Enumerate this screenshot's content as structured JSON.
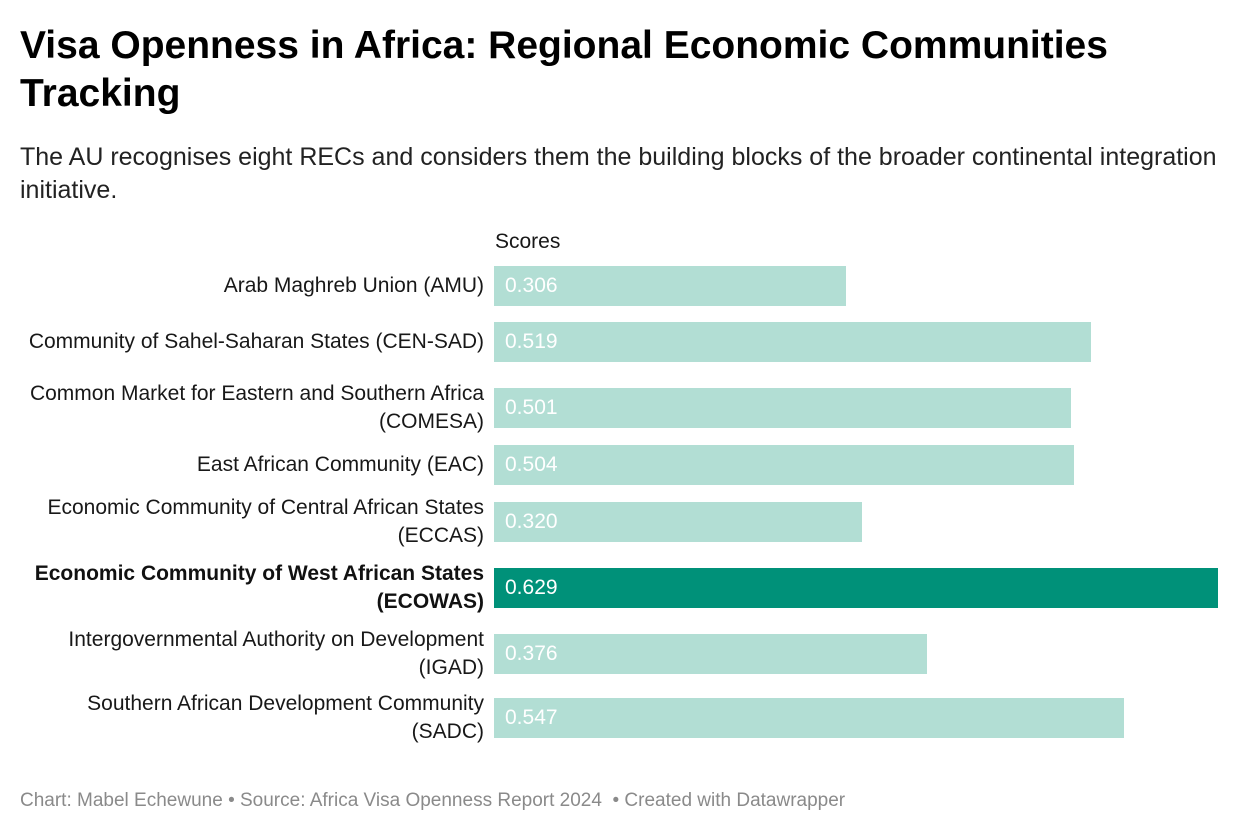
{
  "title": "Visa Openness in Africa: Regional Economic Communities Tracking",
  "subtitle": "The AU recognises eight RECs and considers them the building blocks of the broader continental integration initiative.",
  "footer": {
    "chart": "Chart: Mabel Echewune",
    "source": "Source: Africa Visa Openness Report 2024",
    "created": "Created with Datawrapper"
  },
  "colors": {
    "bar": "#b2ded4",
    "highlight_bar": "#009179"
  },
  "chart_data": {
    "type": "bar",
    "orientation": "horizontal",
    "column_header": "Scores",
    "categories": [
      "Arab Maghreb Union (AMU)",
      "Community of Sahel-Saharan States (CEN-SAD)",
      "Common Market for Eastern and Southern Africa (COMESA)",
      "East African Community (EAC)",
      "Economic Community of Central African States (ECCAS)",
      "Economic Community of West African States (ECOWAS)",
      "Intergovernmental Authority on Development (IGAD)",
      "Southern African Development Community (SADC)"
    ],
    "values": [
      0.306,
      0.519,
      0.501,
      0.504,
      0.32,
      0.629,
      0.376,
      0.547
    ],
    "value_labels": [
      "0.306",
      "0.519",
      "0.501",
      "0.504",
      "0.320",
      "0.629",
      "0.376",
      "0.547"
    ],
    "highlighted": [
      "Economic Community of West African States (ECOWAS)"
    ],
    "xlim": [
      0,
      0.629
    ],
    "grid": false
  }
}
